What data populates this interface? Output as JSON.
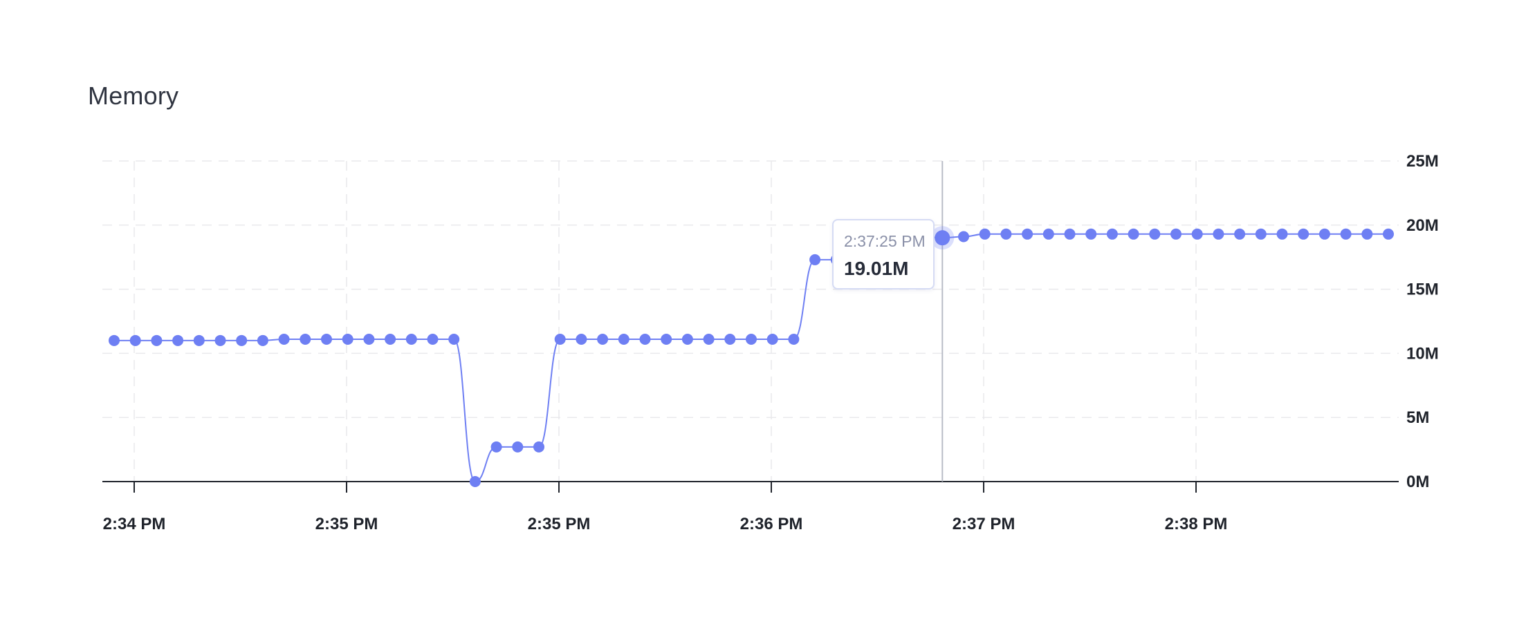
{
  "chart_data": {
    "type": "line",
    "title": "Memory",
    "x_tick_labels": [
      "2:34 PM",
      "2:35 PM",
      "2:35 PM",
      "2:36 PM",
      "2:37 PM",
      "2:38 PM"
    ],
    "y_tick_labels": [
      "25M",
      "20M",
      "15M",
      "10M",
      "5M",
      "0M"
    ],
    "ylim": [
      0,
      25
    ],
    "y_unit": "M",
    "grid": true,
    "series_color": "#6e7ff3",
    "series": [
      {
        "values": [
          11.0,
          11.0,
          11.0,
          11.0,
          11.0,
          11.0,
          11.0,
          11.0,
          11.1,
          11.1,
          11.1,
          11.1,
          11.1,
          11.1,
          11.1,
          11.1,
          11.1,
          0.0,
          2.7,
          2.7,
          2.7,
          11.1,
          11.1,
          11.1,
          11.1,
          11.1,
          11.1,
          11.1,
          11.1,
          11.1,
          11.1,
          11.1,
          11.1,
          17.3,
          17.3,
          19.1,
          19.1,
          19.1,
          19.1,
          19.01,
          19.1,
          19.3,
          19.3,
          19.3,
          19.3,
          19.3,
          19.3,
          19.3,
          19.3,
          19.3,
          19.3,
          19.3,
          19.3,
          19.3,
          19.3,
          19.3,
          19.3,
          19.3,
          19.3,
          19.3,
          19.3
        ]
      }
    ],
    "hover": {
      "time": "2:37:25 PM",
      "value": "19.01M",
      "point_index": 39
    }
  }
}
